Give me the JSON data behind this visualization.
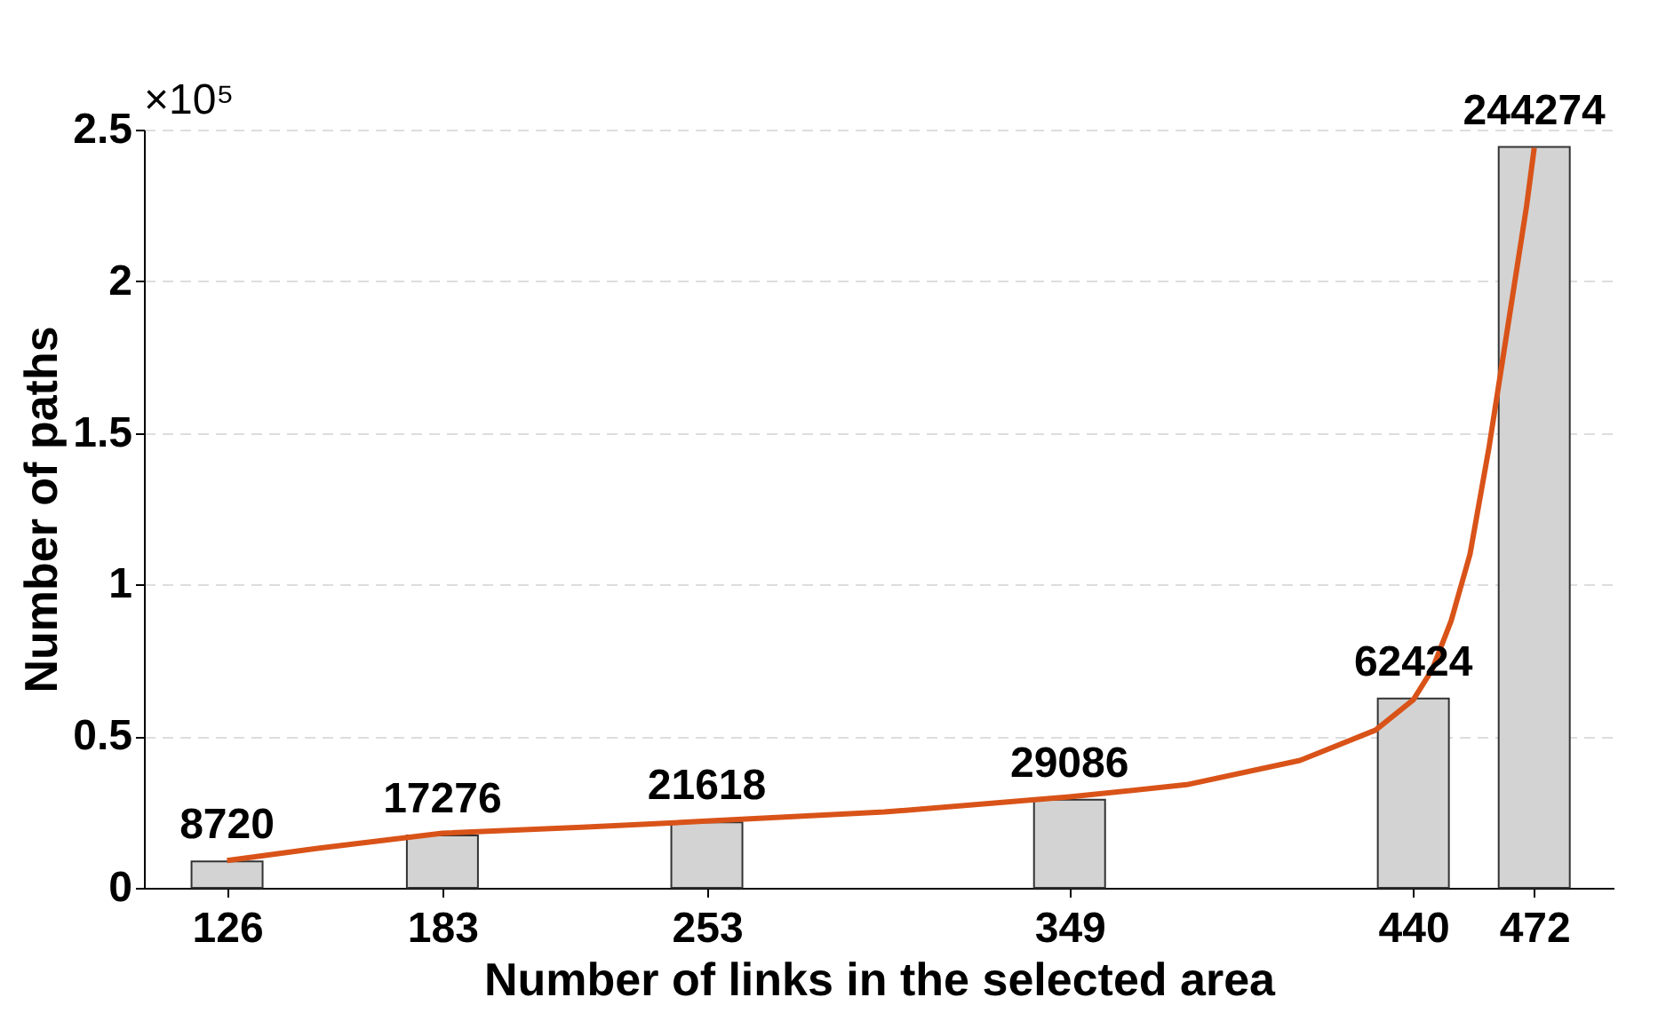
{
  "chart_data": {
    "type": "bar",
    "xlabel": "Number of links in the selected area",
    "ylabel": "Number of paths",
    "x": [
      126,
      183,
      253,
      349,
      440,
      472
    ],
    "series": [
      {
        "color": "#d3d3d3",
        "values": [
          0.0872,
          0.17276,
          0.21618,
          0.29086,
          0.62424,
          2.44274
        ]
      },
      {
        "type": "line",
        "color": "#d95319",
        "x": [
          126,
          150,
          183,
          220,
          253,
          300,
          349,
          380,
          410,
          430,
          440,
          445,
          450,
          455,
          460,
          465,
          470,
          472
        ],
        "values": [
          0.09,
          0.13,
          0.18,
          0.2,
          0.22,
          0.25,
          0.3,
          0.34,
          0.42,
          0.52,
          0.62,
          0.72,
          0.88,
          1.1,
          1.45,
          1.85,
          2.25,
          2.44
        ]
      }
    ],
    "xlim": [
      104,
      493
    ],
    "xticks": [
      126,
      183,
      253,
      349,
      440,
      472
    ],
    "ylim": [
      0,
      2.5
    ],
    "yticks": [
      0,
      0.5,
      1,
      1.5,
      2,
      2.5
    ],
    "annotations": [
      "×10⁵",
      {
        "text": "8720",
        "x": 126,
        "y": 0.0872
      },
      {
        "text": "17276",
        "x": 183,
        "y": 0.17276
      },
      {
        "text": "21618",
        "x": 253,
        "y": 0.21618
      },
      {
        "text": "29086",
        "x": 349,
        "y": 0.29086
      },
      {
        "text": "62424",
        "x": 440,
        "y": 0.62424
      },
      {
        "text": "244274",
        "x": 472,
        "y": 2.44274
      }
    ],
    "grid": "y"
  }
}
